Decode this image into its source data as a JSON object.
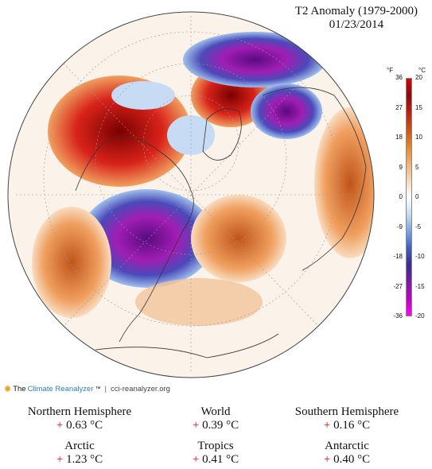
{
  "header": {
    "title": "T2 Anomaly (1979-2000)",
    "date": "01/23/2014"
  },
  "colorbar": {
    "unit_f": "°F",
    "unit_c": "°C",
    "ticks_f": [
      "36",
      "27",
      "18",
      "9",
      "0",
      "-9",
      "-18",
      "-27",
      "-36"
    ],
    "ticks_c": [
      "20",
      "15",
      "10",
      "5",
      "0",
      "-5",
      "-10",
      "-15",
      "-20"
    ],
    "colors": [
      "#ff00ff",
      "#c000c0",
      "#7a1aa0",
      "#3c2d8f",
      "#3f5fbf",
      "#7aa6e0",
      "#c7dcf4",
      "#ffffff",
      "#f7d8b5",
      "#f0b070",
      "#e28630",
      "#d05010",
      "#c02010",
      "#8a0a0a",
      "#e00000"
    ]
  },
  "logo": {
    "prefix": "The ",
    "brand": "Climate Reanalyzer",
    "tm": "™",
    "sep": "|",
    "url": "cci-reanalyzer.org"
  },
  "stats": {
    "nh": {
      "label": "Northern Hemisphere",
      "sign": "+",
      "value": "0.63 °C"
    },
    "world": {
      "label": "World",
      "sign": "+",
      "value": "0.39 °C"
    },
    "sh": {
      "label": "Southern Hemisphere",
      "sign": "+",
      "value": "0.16 °C"
    },
    "arctic": {
      "label": "Arctic",
      "sign": "+",
      "value": "1.23 °C"
    },
    "tropics": {
      "label": "Tropics",
      "sign": "+",
      "value": "0.41 °C"
    },
    "antarctic": {
      "label": "Antarctic",
      "sign": "+",
      "value": "0.40 °C"
    }
  }
}
